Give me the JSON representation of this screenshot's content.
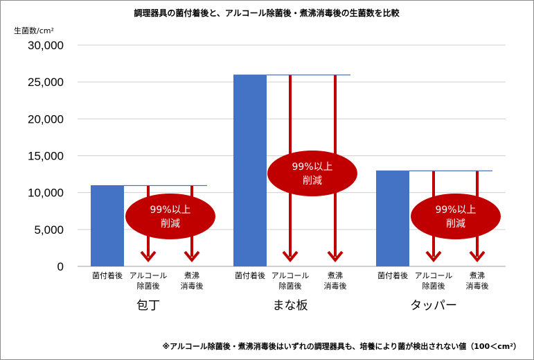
{
  "chart_data": {
    "type": "bar",
    "title": "調理器具の菌付着後と、アルコール除菌後・煮沸消毒後の生菌数を比較",
    "ylabel": "生菌数/cm²",
    "ylim": [
      0,
      30000
    ],
    "yticks": [
      "30,000",
      "25,000",
      "20,000",
      "15,000",
      "10,000",
      "5,000",
      "0"
    ],
    "ytick_values": [
      30000,
      25000,
      20000,
      15000,
      10000,
      5000,
      0
    ],
    "grid": true,
    "bar_color": "#4472c4",
    "arrow_color": "#c00000",
    "reference_line_color": "#4472c4",
    "groups": [
      {
        "name": "包丁",
        "value_after_contamination": 11000,
        "categories": [
          {
            "line1": "菌付着後",
            "line2": ""
          },
          {
            "line1": "アルコール",
            "line2": "除菌後"
          },
          {
            "line1": "煮沸",
            "line2": "消毒後"
          }
        ],
        "annotation": {
          "line1": "99%以上",
          "line2": "削減"
        }
      },
      {
        "name": "まな板",
        "value_after_contamination": 26000,
        "categories": [
          {
            "line1": "菌付着後",
            "line2": ""
          },
          {
            "line1": "アルコール",
            "line2": "除菌後"
          },
          {
            "line1": "煮沸",
            "line2": "消毒後"
          }
        ],
        "annotation": {
          "line1": "99%以上",
          "line2": "削減"
        }
      },
      {
        "name": "タッパー",
        "value_after_contamination": 13000,
        "categories": [
          {
            "line1": "菌付着後",
            "line2": ""
          },
          {
            "line1": "アルコール",
            "line2": "除菌後"
          },
          {
            "line1": "煮沸",
            "line2": "消毒後"
          }
        ],
        "annotation": {
          "line1": "99%以上",
          "line2": "削減"
        }
      }
    ],
    "footnote": "※アルコール除菌後・煮沸消毒後はいずれの調理器具も、培養により菌が検出されない値（100＜cm²）"
  }
}
